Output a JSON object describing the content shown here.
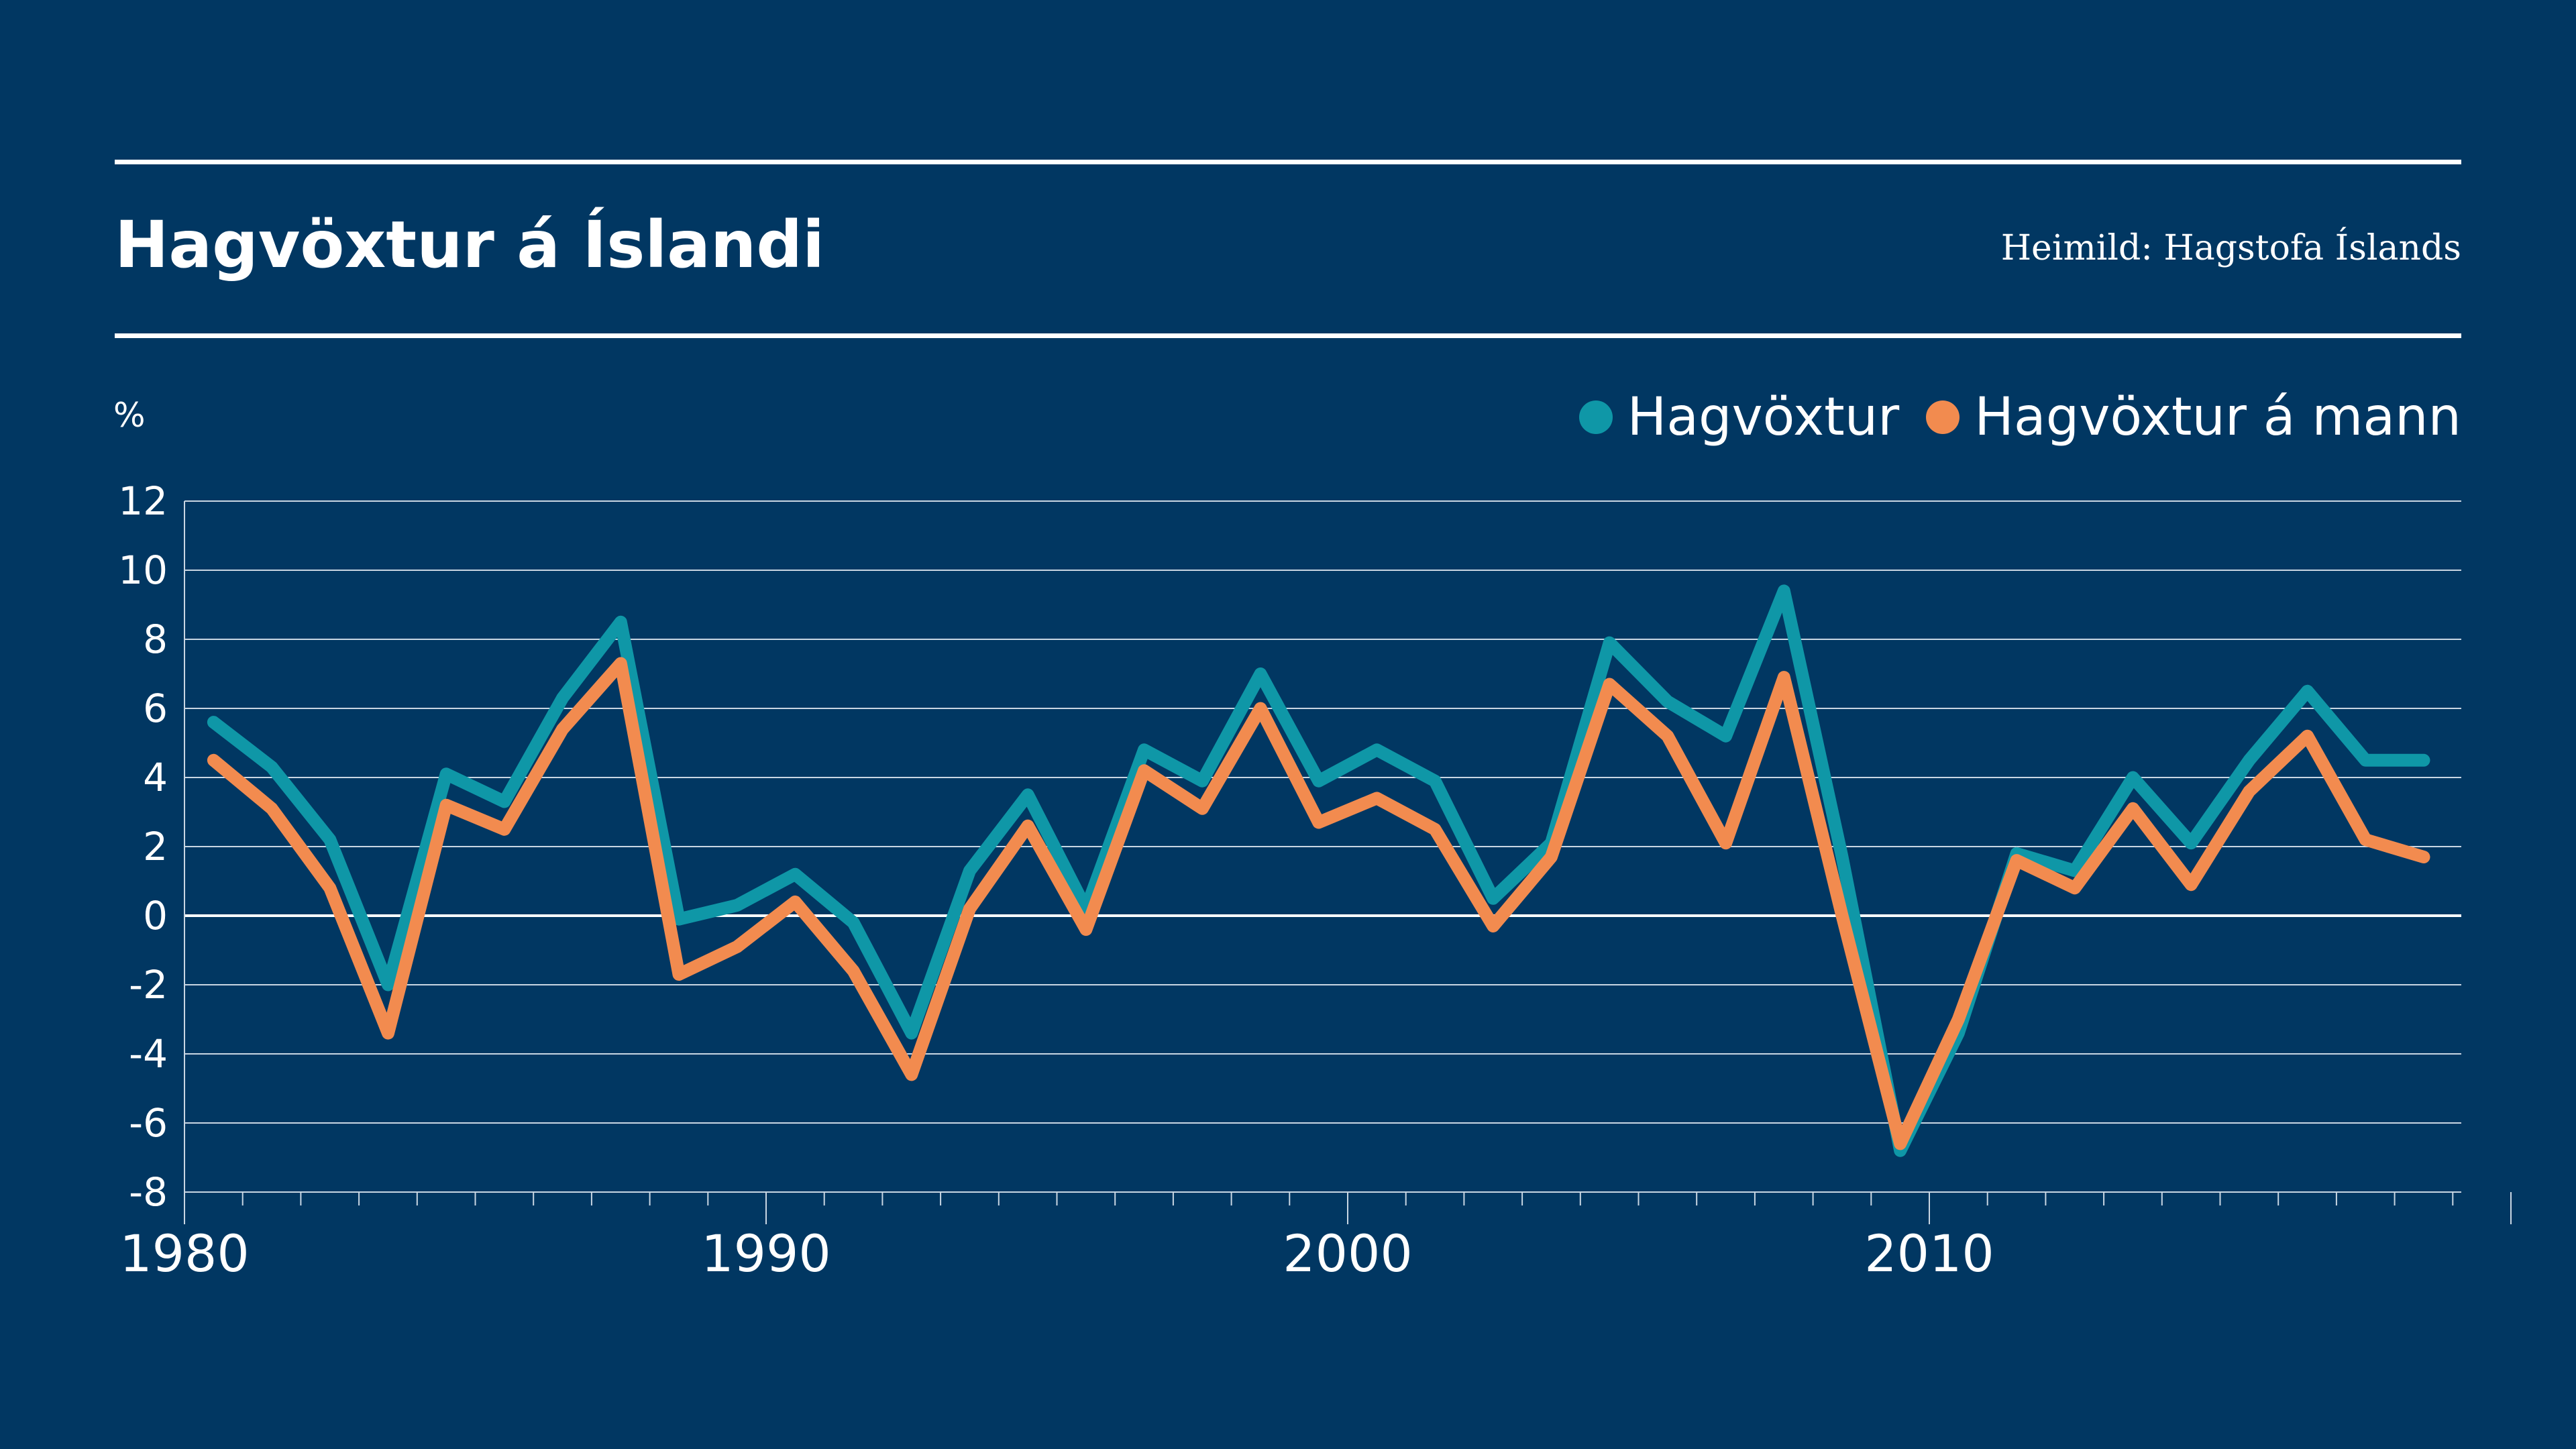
{
  "title": "Hagvöxtur á Íslandi",
  "source": "Heimild: Hagstofa Íslands",
  "unit": "%",
  "colors": {
    "background": "#013762",
    "hagvoxtur": "#0f97a7",
    "hagvoxtur_a_mann": "#f28b4f",
    "text": "#ffffff"
  },
  "chart_data": {
    "type": "line",
    "title": "Hagvöxtur á Íslandi",
    "ylabel": "%",
    "ylim": [
      -8,
      12
    ],
    "yticks": [
      "12",
      "10",
      "8",
      "6",
      "4",
      "2",
      "0",
      "-2",
      "-4",
      "-6",
      "-8"
    ],
    "xlim": [
      1980,
      2020
    ],
    "xticks": [
      "1980",
      "1990",
      "2000",
      "2010"
    ],
    "grid": true,
    "legend_position": "top-right",
    "x": [
      1980,
      1981,
      1982,
      1983,
      1984,
      1985,
      1986,
      1987,
      1988,
      1989,
      1990,
      1991,
      1992,
      1993,
      1994,
      1995,
      1996,
      1997,
      1998,
      1999,
      2000,
      2001,
      2002,
      2003,
      2004,
      2005,
      2006,
      2007,
      2008,
      2009,
      2010,
      2011,
      2012,
      2013,
      2014,
      2015,
      2016,
      2017,
      2018
    ],
    "series": [
      {
        "name": "Hagvöxtur",
        "color": "#0f97a7",
        "values": [
          5.6,
          4.3,
          2.2,
          -2.0,
          4.1,
          3.3,
          6.3,
          8.5,
          -0.1,
          0.3,
          1.2,
          -0.2,
          -3.4,
          1.3,
          3.5,
          0.2,
          4.8,
          3.9,
          7.0,
          3.9,
          4.8,
          3.9,
          0.5,
          2.1,
          7.9,
          6.2,
          5.2,
          9.4,
          1.7,
          -6.8,
          -3.4,
          1.8,
          1.3,
          4.0,
          2.1,
          4.5,
          6.5,
          4.5,
          4.5
        ]
      },
      {
        "name": "Hagvöxtur á mann",
        "color": "#f28b4f",
        "values": [
          4.5,
          3.1,
          0.8,
          -3.4,
          3.2,
          2.5,
          5.4,
          7.3,
          -1.7,
          -0.9,
          0.4,
          -1.6,
          -4.6,
          0.2,
          2.6,
          -0.4,
          4.2,
          3.1,
          6.0,
          2.7,
          3.4,
          2.5,
          -0.3,
          1.7,
          6.7,
          5.2,
          2.1,
          6.9,
          0.0,
          -6.6,
          -3.0,
          1.6,
          0.8,
          3.1,
          0.9,
          3.6,
          5.2,
          2.2,
          1.7
        ]
      }
    ]
  }
}
